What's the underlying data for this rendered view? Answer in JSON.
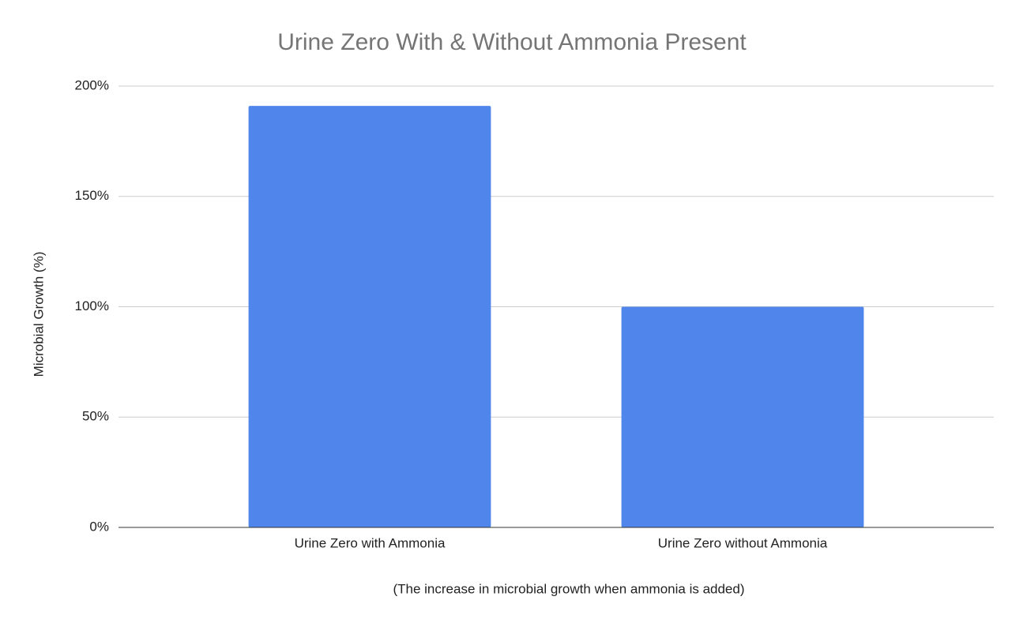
{
  "chart_data": {
    "type": "bar",
    "title": "Urine Zero With & Without Ammonia Present",
    "x_label": "(The increase in microbial growth when ammonia is added)",
    "y_label": "Microbial Growth (%)",
    "categories": [
      "Urine Zero with Ammonia",
      "Urine Zero without Ammonia"
    ],
    "values": [
      191,
      100
    ],
    "color": "#5086ec",
    "ylim": [
      0,
      200
    ],
    "yticks": [
      {
        "value": 0,
        "label": "0%"
      },
      {
        "value": 50,
        "label": "50%"
      },
      {
        "value": 100,
        "label": "100%"
      },
      {
        "value": 150,
        "label": "150%"
      },
      {
        "value": 200,
        "label": "200%"
      }
    ],
    "grid": true
  }
}
